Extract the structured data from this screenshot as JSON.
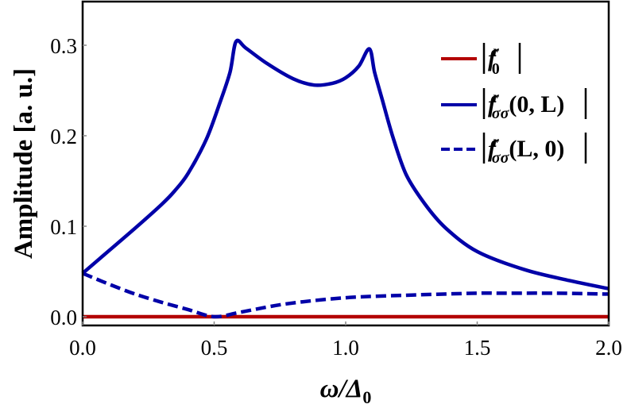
{
  "chart_data": {
    "type": "line",
    "title": "",
    "xlabel": "ω/Δ₀",
    "ylabel": "Amplitude [a. u.]",
    "xlim": [
      0.0,
      2.0
    ],
    "ylim": [
      -0.01,
      0.35
    ],
    "xticks": [
      "0.0",
      "0.5",
      "1.0",
      "1.5",
      "2.0"
    ],
    "yticks": [
      "0.0",
      "0.1",
      "0.2",
      "0.3"
    ],
    "grid": false,
    "legend_position": "upper right",
    "series": [
      {
        "name": "|f_0^r|",
        "color": "#b30000",
        "style": "solid",
        "x": [
          0.0,
          0.5,
          1.0,
          1.5,
          2.0
        ],
        "y": [
          0.0,
          0.0,
          0.0,
          0.0,
          0.0
        ]
      },
      {
        "name": "|f_σσ^r(0, L)|",
        "color": "#0000a8",
        "style": "solid",
        "x": [
          0.0,
          0.1,
          0.2,
          0.3,
          0.35,
          0.4,
          0.47,
          0.52,
          0.56,
          0.583,
          0.62,
          0.7,
          0.8,
          0.88,
          0.95,
          1.0,
          1.05,
          1.09,
          1.11,
          1.14,
          1.18,
          1.23,
          1.3,
          1.38,
          1.5,
          1.68,
          1.85,
          2.0
        ],
        "y": [
          0.048,
          0.073,
          0.098,
          0.124,
          0.139,
          0.158,
          0.196,
          0.235,
          0.27,
          0.304,
          0.297,
          0.28,
          0.263,
          0.256,
          0.258,
          0.264,
          0.277,
          0.296,
          0.27,
          0.239,
          0.198,
          0.157,
          0.125,
          0.098,
          0.072,
          0.052,
          0.04,
          0.031
        ]
      },
      {
        "name": "|f_σσ^r(L, 0)|",
        "color": "#0000a8",
        "style": "dashed",
        "x": [
          0.0,
          0.1,
          0.2,
          0.3,
          0.4,
          0.5,
          0.6,
          0.77,
          1.0,
          1.26,
          1.5,
          1.6,
          1.8,
          2.0
        ],
        "y": [
          0.048,
          0.036,
          0.025,
          0.016,
          0.008,
          0.0,
          0.005,
          0.014,
          0.021,
          0.024,
          0.026,
          0.026,
          0.026,
          0.025
        ]
      }
    ]
  },
  "legend": {
    "items": [
      {
        "label_main": "f",
        "sup": "r",
        "sub": "0",
        "args": ""
      },
      {
        "label_main": "f",
        "sup": "r",
        "sub": "σσ",
        "args": "(0, L)"
      },
      {
        "label_main": "f",
        "sup": "r",
        "sub": "σσ",
        "args": "(L, 0)"
      }
    ]
  },
  "axes": {
    "x_title_main": "ω/Δ",
    "x_title_sub": "0",
    "y_title": "Amplitude [a. u.]"
  }
}
